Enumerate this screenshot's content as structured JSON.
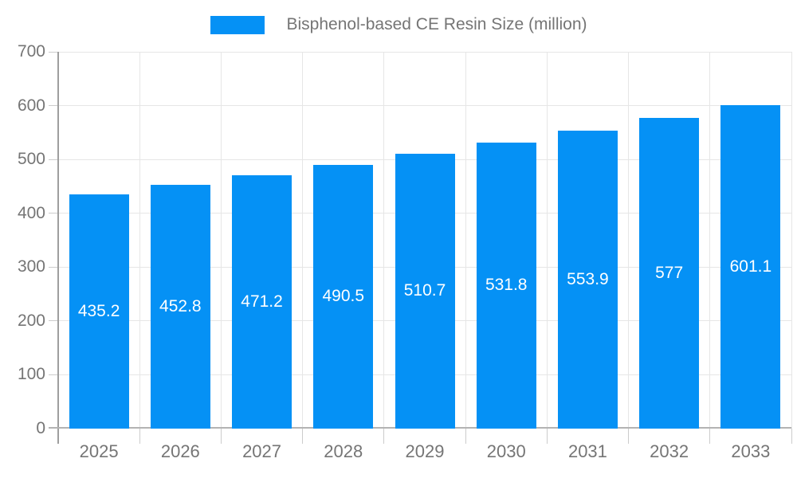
{
  "chart_data": {
    "type": "bar",
    "title": "Bisphenol-based CE Resin Size (million)",
    "legend": {
      "position": "top",
      "label": "Bisphenol-based CE Resin Size (million)"
    },
    "categories": [
      "2025",
      "2026",
      "2027",
      "2028",
      "2029",
      "2030",
      "2031",
      "2032",
      "2033"
    ],
    "values": [
      435.2,
      452.8,
      471.2,
      490.5,
      510.7,
      531.8,
      553.9,
      577,
      601.1
    ],
    "value_labels": [
      "435.2",
      "452.8",
      "471.2",
      "490.5",
      "510.7",
      "531.8",
      "553.9",
      "577",
      "601.1"
    ],
    "xlabel": "",
    "ylabel": "",
    "ylim": [
      0,
      700
    ],
    "ytick_step": 100,
    "grid": true,
    "value_labels_position": "inside-center"
  },
  "colors": {
    "bar": "#0591f5",
    "grid": "#e6e6e6",
    "axis": "#9e9e9e",
    "baseline": "#b3b3b3",
    "tick": "#cccccc",
    "axis_text": "#757575",
    "value_text": "#ffffff",
    "background": "#ffffff"
  }
}
